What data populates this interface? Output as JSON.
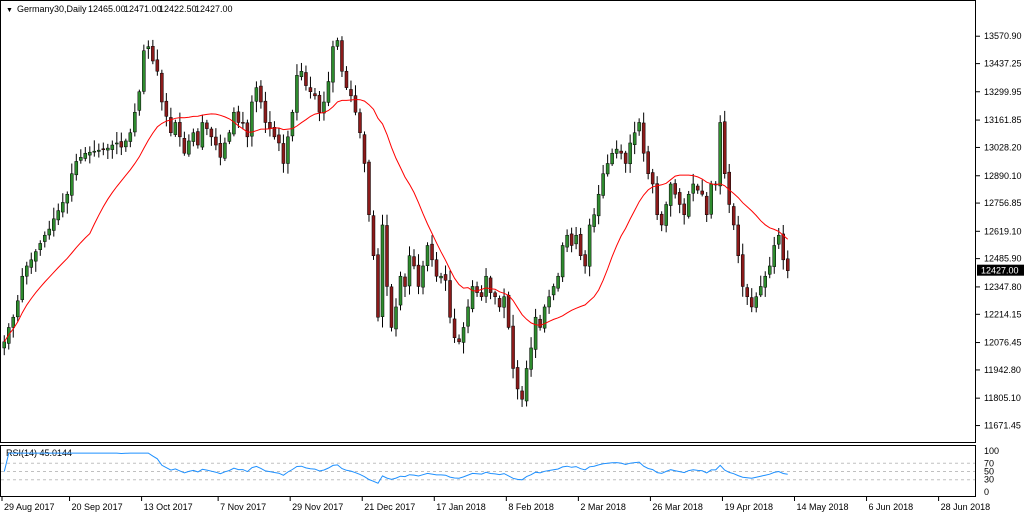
{
  "header": {
    "symbol": "Germany30,Daily",
    "open": "12465.00",
    "high": "12471.00",
    "low": "12422.50",
    "close": "12427.00",
    "collapse_glyph": "▼"
  },
  "rsi_label": "RSI(14) 45.0144",
  "current_price_label": "12427.00",
  "colors": {
    "bull": "#2e8b2e",
    "bear": "#8b1a1a",
    "ma": "#ff0000",
    "rsi": "#1e90ff",
    "grid": "#c0c0c0",
    "axis": "#000000"
  },
  "chart_data": [
    {
      "type": "candlestick",
      "title": "Germany30,Daily",
      "ylim": [
        11640,
        13650
      ],
      "y_ticks": [
        13570.9,
        13437.25,
        13299.95,
        13161.85,
        13028.2,
        12890.1,
        12756.85,
        12619.1,
        12485.9,
        12347.8,
        12214.15,
        12076.45,
        11942.8,
        11805.1,
        11671.45
      ],
      "y_tick_labels": [
        "13570.90",
        "13437.25",
        "13299.95",
        "13161.85",
        "13028.20",
        "12890.10",
        "12756.85",
        "12619.10",
        "12485.90",
        "12347.80",
        "12214.15",
        "12076.45",
        "11942.80",
        "11805.10",
        "11671.45"
      ],
      "x_tick_labels": [
        "29 Aug 2017",
        "20 Sep 2017",
        "13 Oct 2017",
        "7 Nov 2017",
        "29 Nov 2017",
        "21 Dec 2017",
        "17 Jan 2018",
        "8 Feb 2018",
        "2 Mar 2018",
        "26 Mar 2018",
        "19 Apr 2018",
        "14 May 2018",
        "6 Jun 2018",
        "28 Jun 2018"
      ],
      "x_tick_index": [
        0,
        15,
        31,
        48,
        64,
        80,
        96,
        112,
        128,
        144,
        160,
        176,
        192,
        208
      ],
      "current_price": 12427.0,
      "close": [
        12080,
        12150,
        12200,
        12280,
        12400,
        12450,
        12480,
        12520,
        12560,
        12600,
        12630,
        12680,
        12720,
        12760,
        12800,
        12900,
        12960,
        12980,
        13000,
        13005,
        13010,
        13015,
        13020,
        13025,
        13040,
        13050,
        13030,
        13060,
        13100,
        13200,
        13300,
        13500,
        13520,
        13450,
        13400,
        13250,
        13180,
        13100,
        13150,
        13080,
        13000,
        13060,
        13100,
        13040,
        13150,
        13120,
        13080,
        13040,
        12980,
        13050,
        13100,
        13200,
        13150,
        13150,
        13080,
        13250,
        13320,
        13250,
        13150,
        13120,
        13080,
        13050,
        12950,
        13080,
        13200,
        13380,
        13400,
        13330,
        13300,
        13280,
        13200,
        13250,
        13350,
        13520,
        13550,
        13400,
        13320,
        13280,
        13200,
        13100,
        12950,
        12700,
        12500,
        12200,
        12650,
        12350,
        12150,
        12250,
        12400,
        12350,
        12500,
        12450,
        12350,
        12450,
        12550,
        12480,
        12400,
        12400,
        12380,
        12200,
        12100,
        12080,
        12150,
        12250,
        12350,
        12320,
        12300,
        12400,
        12320,
        12300,
        12250,
        12300,
        12150,
        11950,
        11850,
        11800,
        11950,
        12050,
        12200,
        12150,
        12250,
        12300,
        12350,
        12400,
        12550,
        12600,
        12550,
        12600,
        12500,
        12450,
        12650,
        12700,
        12800,
        12900,
        12950,
        13000,
        13020,
        13000,
        12950,
        13050,
        13100,
        13150,
        13000,
        12900,
        12850,
        12700,
        12650,
        12750,
        12850,
        12800,
        12750,
        12700,
        12800,
        12850,
        12820,
        12800,
        12700,
        12850,
        12850,
        13150,
        12900,
        12750,
        12650,
        12500,
        12350,
        12300,
        12250,
        12300,
        12350,
        12400,
        12450,
        12550,
        12600,
        12480,
        12427
      ],
      "ma_period": 20,
      "indicator": {
        "name": "RSI(14)",
        "value": 45.0144,
        "ylim": [
          0,
          100
        ],
        "y_tick_labels": [
          "100",
          "70",
          "50",
          "30",
          "0"
        ],
        "levels": [
          70,
          50,
          30
        ]
      }
    }
  ]
}
